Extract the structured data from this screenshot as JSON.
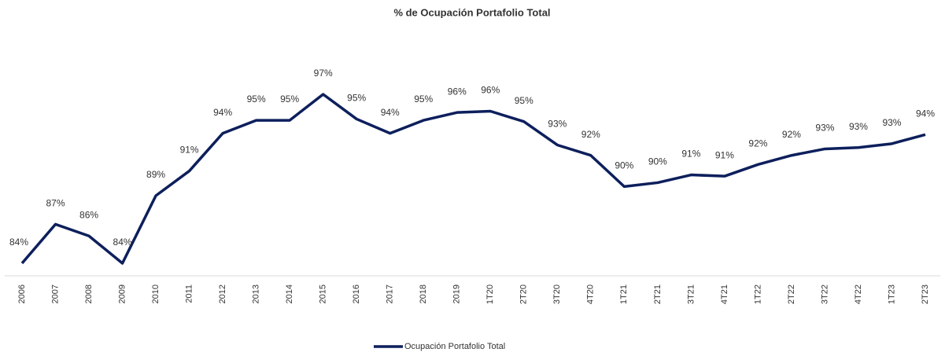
{
  "chart_data": {
    "type": "line",
    "title": "% de Ocupación Portafolio Total",
    "categories": [
      "2006",
      "2007",
      "2008",
      "2009",
      "2010",
      "2011",
      "2012",
      "2013",
      "2014",
      "2015",
      "2016",
      "2017",
      "2018",
      "2019",
      "1T20",
      "2T20",
      "3T20",
      "4T20",
      "1T21",
      "2T21",
      "3T21",
      "4T21",
      "1T22",
      "2T22",
      "3T22",
      "4T22",
      "1T23",
      "2T23"
    ],
    "series": [
      {
        "name": "Ocupación Portafolio Total",
        "color": "#0d1f5c",
        "values": [
          84.0,
          87.0,
          86.1,
          84.0,
          89.2,
          91.1,
          94.0,
          95.0,
          95.0,
          97.0,
          95.1,
          94.0,
          95.0,
          95.6,
          95.7,
          94.9,
          93.1,
          92.3,
          89.9,
          90.2,
          90.8,
          90.7,
          91.6,
          92.3,
          92.8,
          92.9,
          93.2,
          93.9
        ],
        "value_labels": [
          "84%",
          "87%",
          "86%",
          "84%",
          "89%",
          "91%",
          "94%",
          "95%",
          "95%",
          "97%",
          "95%",
          "94%",
          "95%",
          "96%",
          "96%",
          "95%",
          "93%",
          "92%",
          "90%",
          "90%",
          "91%",
          "91%",
          "92%",
          "92%",
          "93%",
          "93%",
          "93%",
          "94%"
        ]
      }
    ],
    "ylim": [
      83,
      100
    ],
    "legend": "bottom"
  }
}
